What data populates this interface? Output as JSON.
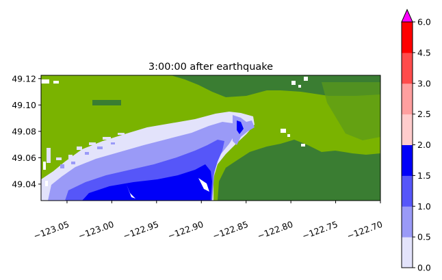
{
  "title": "3:00:00 after earthquake",
  "map": {
    "x_ticks": [
      "−123.05",
      "−123.00",
      "−122.95",
      "−122.90",
      "−122.85",
      "−122.80",
      "−122.75",
      "−122.70"
    ],
    "x_tick_values": [
      -123.05,
      -123.0,
      -122.95,
      -122.9,
      -122.85,
      -122.8,
      -122.75,
      -122.7
    ],
    "y_ticks": [
      "49.12",
      "49.10",
      "49.08",
      "49.06",
      "49.04"
    ],
    "y_tick_values": [
      49.12,
      49.1,
      49.08,
      49.06,
      49.04
    ],
    "xlim": [
      -123.079,
      -122.7
    ],
    "ylim": [
      49.0275,
      49.1225
    ],
    "land_colors": {
      "low_land": "#7ab300",
      "high_land": "#3a7d32"
    }
  },
  "colorbar": {
    "tick_labels": [
      "0.0",
      "0.5",
      "1.0",
      "1.5",
      "2.0",
      "2.5",
      "3.0",
      "4.5",
      "6.0"
    ],
    "levels": [
      0.0,
      0.5,
      1.0,
      1.5,
      2.0,
      2.5,
      3.0,
      4.5,
      6.0
    ],
    "colors": [
      "#e3e3fb",
      "#9a9af7",
      "#5656f9",
      "#0000f8",
      "#ffcccc",
      "#ff9f9f",
      "#ff4c4c",
      "#fe0000"
    ],
    "extend_color": "#ff00ff",
    "extend": "max"
  }
}
